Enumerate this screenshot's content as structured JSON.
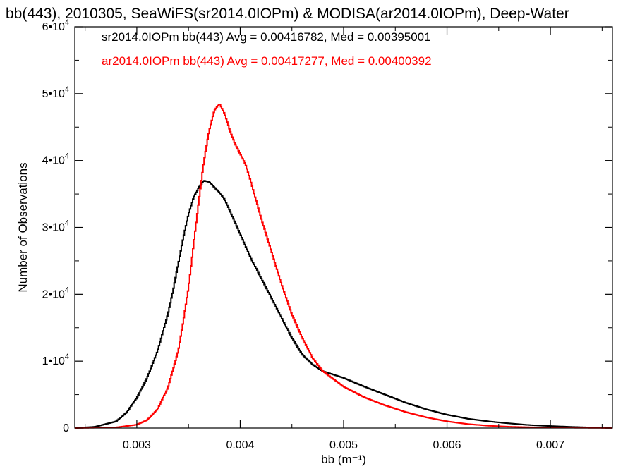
{
  "chart_data": {
    "type": "line",
    "title": "bb(443), 2010305, SeaWiFS(sr2014.0IOPm) & MODISA(ar2014.0IOPm), Deep-Water",
    "xlabel": "bb (m⁻¹)",
    "ylabel": "Number of Observations",
    "xlim": [
      0.0024,
      0.0076
    ],
    "ylim": [
      0,
      60000
    ],
    "grid": false,
    "legend_position": "top-left",
    "x_ticks": [
      {
        "value": 0.003,
        "label": "0.003"
      },
      {
        "value": 0.004,
        "label": "0.004"
      },
      {
        "value": 0.005,
        "label": "0.005"
      },
      {
        "value": 0.006,
        "label": "0.006"
      },
      {
        "value": 0.007,
        "label": "0.007"
      }
    ],
    "y_ticks": [
      {
        "value": 0,
        "mant": "0",
        "exp": ""
      },
      {
        "value": 10000,
        "mant": "1•10",
        "exp": "4"
      },
      {
        "value": 20000,
        "mant": "2•10",
        "exp": "4"
      },
      {
        "value": 30000,
        "mant": "3•10",
        "exp": "4"
      },
      {
        "value": 40000,
        "mant": "4•10",
        "exp": "4"
      },
      {
        "value": 50000,
        "mant": "5•10",
        "exp": "4"
      },
      {
        "value": 60000,
        "mant": "6•10",
        "exp": "4"
      }
    ],
    "series": [
      {
        "legend": "sr2014.0IOPm bb(443) Avg = 0.00416782, Med = 0.00395001",
        "color": "#000000",
        "x": [
          0.0024,
          0.0026,
          0.0028,
          0.0029,
          0.003,
          0.0031,
          0.0032,
          0.0033,
          0.00335,
          0.0034,
          0.00345,
          0.0035,
          0.00355,
          0.0036,
          0.00365,
          0.0037,
          0.00375,
          0.0038,
          0.00385,
          0.0039,
          0.004,
          0.0041,
          0.0042,
          0.0043,
          0.0044,
          0.0045,
          0.0046,
          0.0047,
          0.0048,
          0.005,
          0.0052,
          0.0054,
          0.0056,
          0.0058,
          0.006,
          0.0062,
          0.0064,
          0.0066,
          0.0068,
          0.007,
          0.0072,
          0.0074,
          0.0076
        ],
        "y": [
          0,
          200,
          1000,
          2300,
          4500,
          7500,
          11500,
          17000,
          20500,
          24500,
          28500,
          32000,
          34500,
          36000,
          37000,
          36800,
          36000,
          35200,
          34200,
          32500,
          29000,
          25500,
          22500,
          19500,
          16500,
          13500,
          11000,
          9500,
          8500,
          7500,
          6200,
          5000,
          3800,
          2800,
          2000,
          1400,
          1000,
          700,
          450,
          300,
          180,
          80,
          30
        ]
      },
      {
        "legend": "ar2014.0IOPm bb(443) Avg = 0.00417277, Med = 0.00400392",
        "color": "#ff0000",
        "x": [
          0.0024,
          0.0028,
          0.003,
          0.0031,
          0.0032,
          0.0033,
          0.0034,
          0.00345,
          0.0035,
          0.00355,
          0.0036,
          0.00365,
          0.0037,
          0.00375,
          0.0038,
          0.00385,
          0.0039,
          0.00395,
          0.004,
          0.00405,
          0.0041,
          0.0042,
          0.0043,
          0.0044,
          0.0045,
          0.0046,
          0.0047,
          0.0048,
          0.005,
          0.0052,
          0.0054,
          0.0056,
          0.0058,
          0.006,
          0.0062,
          0.0064,
          0.0066,
          0.0068,
          0.007,
          0.0072,
          0.0074,
          0.0076
        ],
        "y": [
          0,
          100,
          500,
          1200,
          2800,
          6000,
          11500,
          16000,
          21000,
          27500,
          34000,
          40000,
          44500,
          47500,
          48500,
          47000,
          44500,
          42500,
          41000,
          39500,
          37000,
          31500,
          26500,
          21500,
          17000,
          13500,
          10500,
          8500,
          6200,
          4600,
          3400,
          2400,
          1600,
          1000,
          600,
          350,
          200,
          120,
          80,
          50,
          30,
          10
        ]
      }
    ]
  }
}
